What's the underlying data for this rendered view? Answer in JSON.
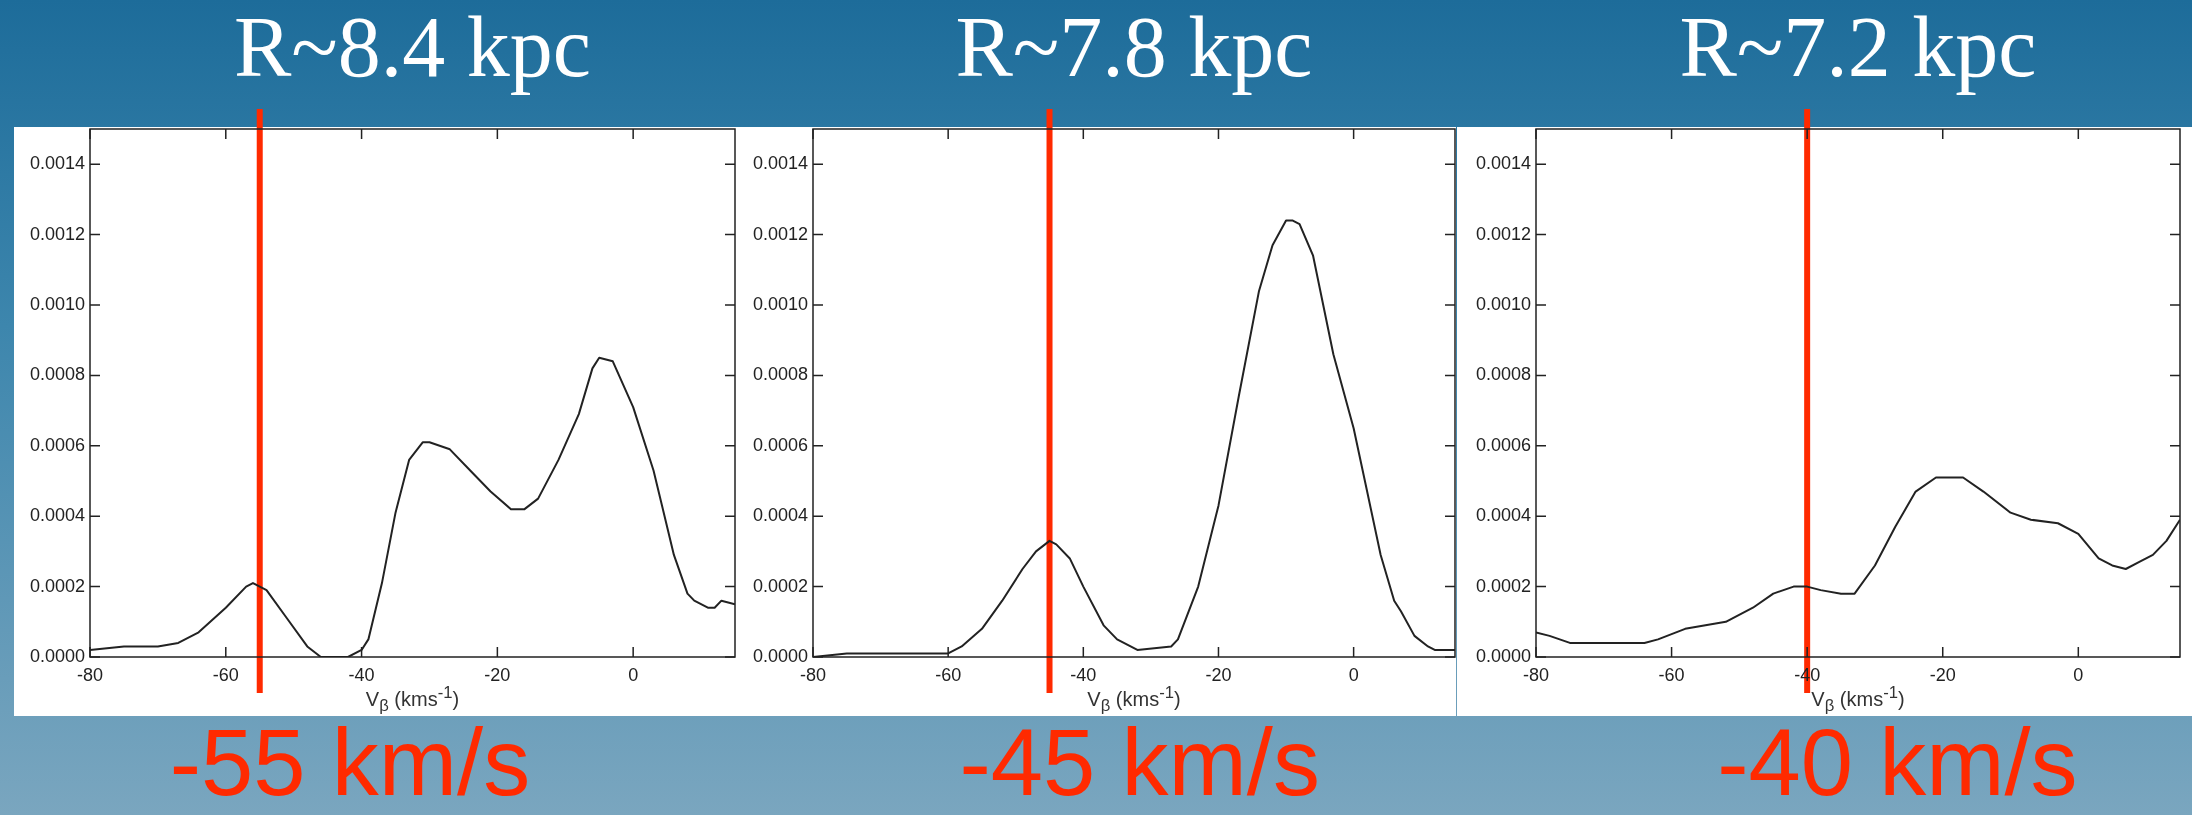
{
  "chart_data": [
    {
      "type": "line",
      "title": "R~8.4 kpc",
      "xlabel": "V$_{β}$ (kms$^{-1}$)",
      "x": [
        -80,
        -75,
        -70,
        -67,
        -64,
        -60,
        -57,
        -56,
        -54,
        -51,
        -48,
        -46,
        -42,
        -40,
        -39,
        -37,
        -35,
        -33,
        -31,
        -30,
        -27,
        -24,
        -21,
        -18,
        -16,
        -14,
        -11,
        -8,
        -6,
        -5,
        -3,
        0,
        3,
        6,
        8,
        9,
        11,
        12,
        13,
        15
      ],
      "series": [
        {
          "color": "#222222",
          "values": [
            2e-05,
            3e-05,
            3e-05,
            4e-05,
            7e-05,
            0.00014,
            0.0002,
            0.00021,
            0.00019,
            0.00011,
            3e-05,
            0,
            0,
            2e-05,
            5e-05,
            0.00021,
            0.00041,
            0.00056,
            0.00061,
            0.00061,
            0.00059,
            0.00053,
            0.00047,
            0.00042,
            0.00042,
            0.00045,
            0.00056,
            0.00069,
            0.00082,
            0.00085,
            0.00084,
            0.00071,
            0.00053,
            0.00029,
            0.00018,
            0.00016,
            0.00014,
            0.00014,
            0.00016,
            0.00015
          ]
        }
      ],
      "xlim": [
        -80,
        15
      ],
      "xticks": [
        -80,
        -60,
        -40,
        -20,
        0
      ],
      "ylim": [
        0,
        0.0015
      ],
      "yticks": [
        {
          "value": 0,
          "label": "0.0000"
        },
        {
          "value": 0.0002,
          "label": "0.0002"
        },
        {
          "value": 0.0004,
          "label": "0.0004"
        },
        {
          "value": 0.0006,
          "label": "0.0006"
        },
        {
          "value": 0.0008,
          "label": "0.0008"
        },
        {
          "value": 0.001,
          "label": "0.0010"
        },
        {
          "value": 0.0012,
          "label": "0.0012"
        },
        {
          "value": 0.0014,
          "label": "0.0014"
        }
      ],
      "ref_lines": [
        {
          "axis": "x",
          "value": -55,
          "label": "-55 km/s",
          "color": "#ff2a00"
        }
      ]
    },
    {
      "type": "line",
      "title": "R~7.8 kpc",
      "xlabel": "V$_{β}$ (kms$^{-1}$)",
      "x": [
        -80,
        -75,
        -72,
        -68,
        -63,
        -60,
        -58,
        -55,
        -52,
        -49,
        -47,
        -45,
        -44,
        -42,
        -40,
        -37,
        -35,
        -32,
        -27,
        -26,
        -23,
        -20,
        -17,
        -14,
        -12,
        -10,
        -9,
        -8,
        -6,
        -3,
        0,
        2,
        4,
        6,
        7,
        9,
        11,
        12,
        15
      ],
      "series": [
        {
          "color": "#222222",
          "values": [
            0,
            1e-05,
            1e-05,
            1e-05,
            1e-05,
            1e-05,
            3e-05,
            8e-05,
            0.00016,
            0.00025,
            0.0003,
            0.00033,
            0.00032,
            0.00028,
            0.0002,
            9e-05,
            5e-05,
            2e-05,
            3e-05,
            5e-05,
            0.0002,
            0.00043,
            0.00074,
            0.00104,
            0.00117,
            0.00124,
            0.00124,
            0.00123,
            0.00114,
            0.00086,
            0.00065,
            0.00047,
            0.00029,
            0.00016,
            0.00013,
            6e-05,
            3e-05,
            2e-05,
            2e-05
          ]
        }
      ],
      "xlim": [
        -80,
        15
      ],
      "xticks": [
        -80,
        -60,
        -40,
        -20,
        0
      ],
      "ylim": [
        0,
        0.0015
      ],
      "yticks": [
        {
          "value": 0,
          "label": "0.0000"
        },
        {
          "value": 0.0002,
          "label": "0.0002"
        },
        {
          "value": 0.0004,
          "label": "0.0004"
        },
        {
          "value": 0.0006,
          "label": "0.0006"
        },
        {
          "value": 0.0008,
          "label": "0.0008"
        },
        {
          "value": 0.001,
          "label": "0.0010"
        },
        {
          "value": 0.0012,
          "label": "0.0012"
        },
        {
          "value": 0.0014,
          "label": "0.0014"
        }
      ],
      "ref_lines": [
        {
          "axis": "x",
          "value": -45,
          "label": "-45 km/s",
          "color": "#ff2a00"
        }
      ]
    },
    {
      "type": "line",
      "title": "R~7.2 kpc",
      "xlabel": "V$_{β}$ (kms$^{-1}$)",
      "x": [
        -80,
        -78,
        -75,
        -72,
        -68,
        -64,
        -62,
        -58,
        -55,
        -52,
        -48,
        -45,
        -42,
        -40,
        -38,
        -35,
        -33,
        -30,
        -27,
        -24,
        -21,
        -19,
        -17,
        -14,
        -10,
        -7,
        -3,
        0,
        3,
        5,
        7,
        9,
        11,
        13,
        15
      ],
      "series": [
        {
          "color": "#222222",
          "values": [
            7e-05,
            6e-05,
            4e-05,
            4e-05,
            4e-05,
            4e-05,
            5e-05,
            8e-05,
            9e-05,
            0.0001,
            0.00014,
            0.00018,
            0.0002,
            0.0002,
            0.00019,
            0.00018,
            0.00018,
            0.00026,
            0.00037,
            0.00047,
            0.00051,
            0.00051,
            0.00051,
            0.00047,
            0.00041,
            0.00039,
            0.00038,
            0.00035,
            0.00028,
            0.00026,
            0.00025,
            0.00027,
            0.00029,
            0.00033,
            0.00039
          ]
        }
      ],
      "xlim": [
        -80,
        15
      ],
      "xticks": [
        -80,
        -60,
        -40,
        -20,
        0
      ],
      "ylim": [
        0,
        0.0015
      ],
      "yticks": [
        {
          "value": 0,
          "label": "0.0000"
        },
        {
          "value": 0.0002,
          "label": "0.0002"
        },
        {
          "value": 0.0004,
          "label": "0.0004"
        },
        {
          "value": 0.0006,
          "label": "0.0006"
        },
        {
          "value": 0.0008,
          "label": "0.0008"
        },
        {
          "value": 0.001,
          "label": "0.0010"
        },
        {
          "value": 0.0012,
          "label": "0.0012"
        },
        {
          "value": 0.0014,
          "label": "0.0014"
        }
      ],
      "ref_lines": [
        {
          "axis": "x",
          "value": -40,
          "label": "-40 km/s",
          "color": "#ff2a00"
        }
      ]
    }
  ]
}
